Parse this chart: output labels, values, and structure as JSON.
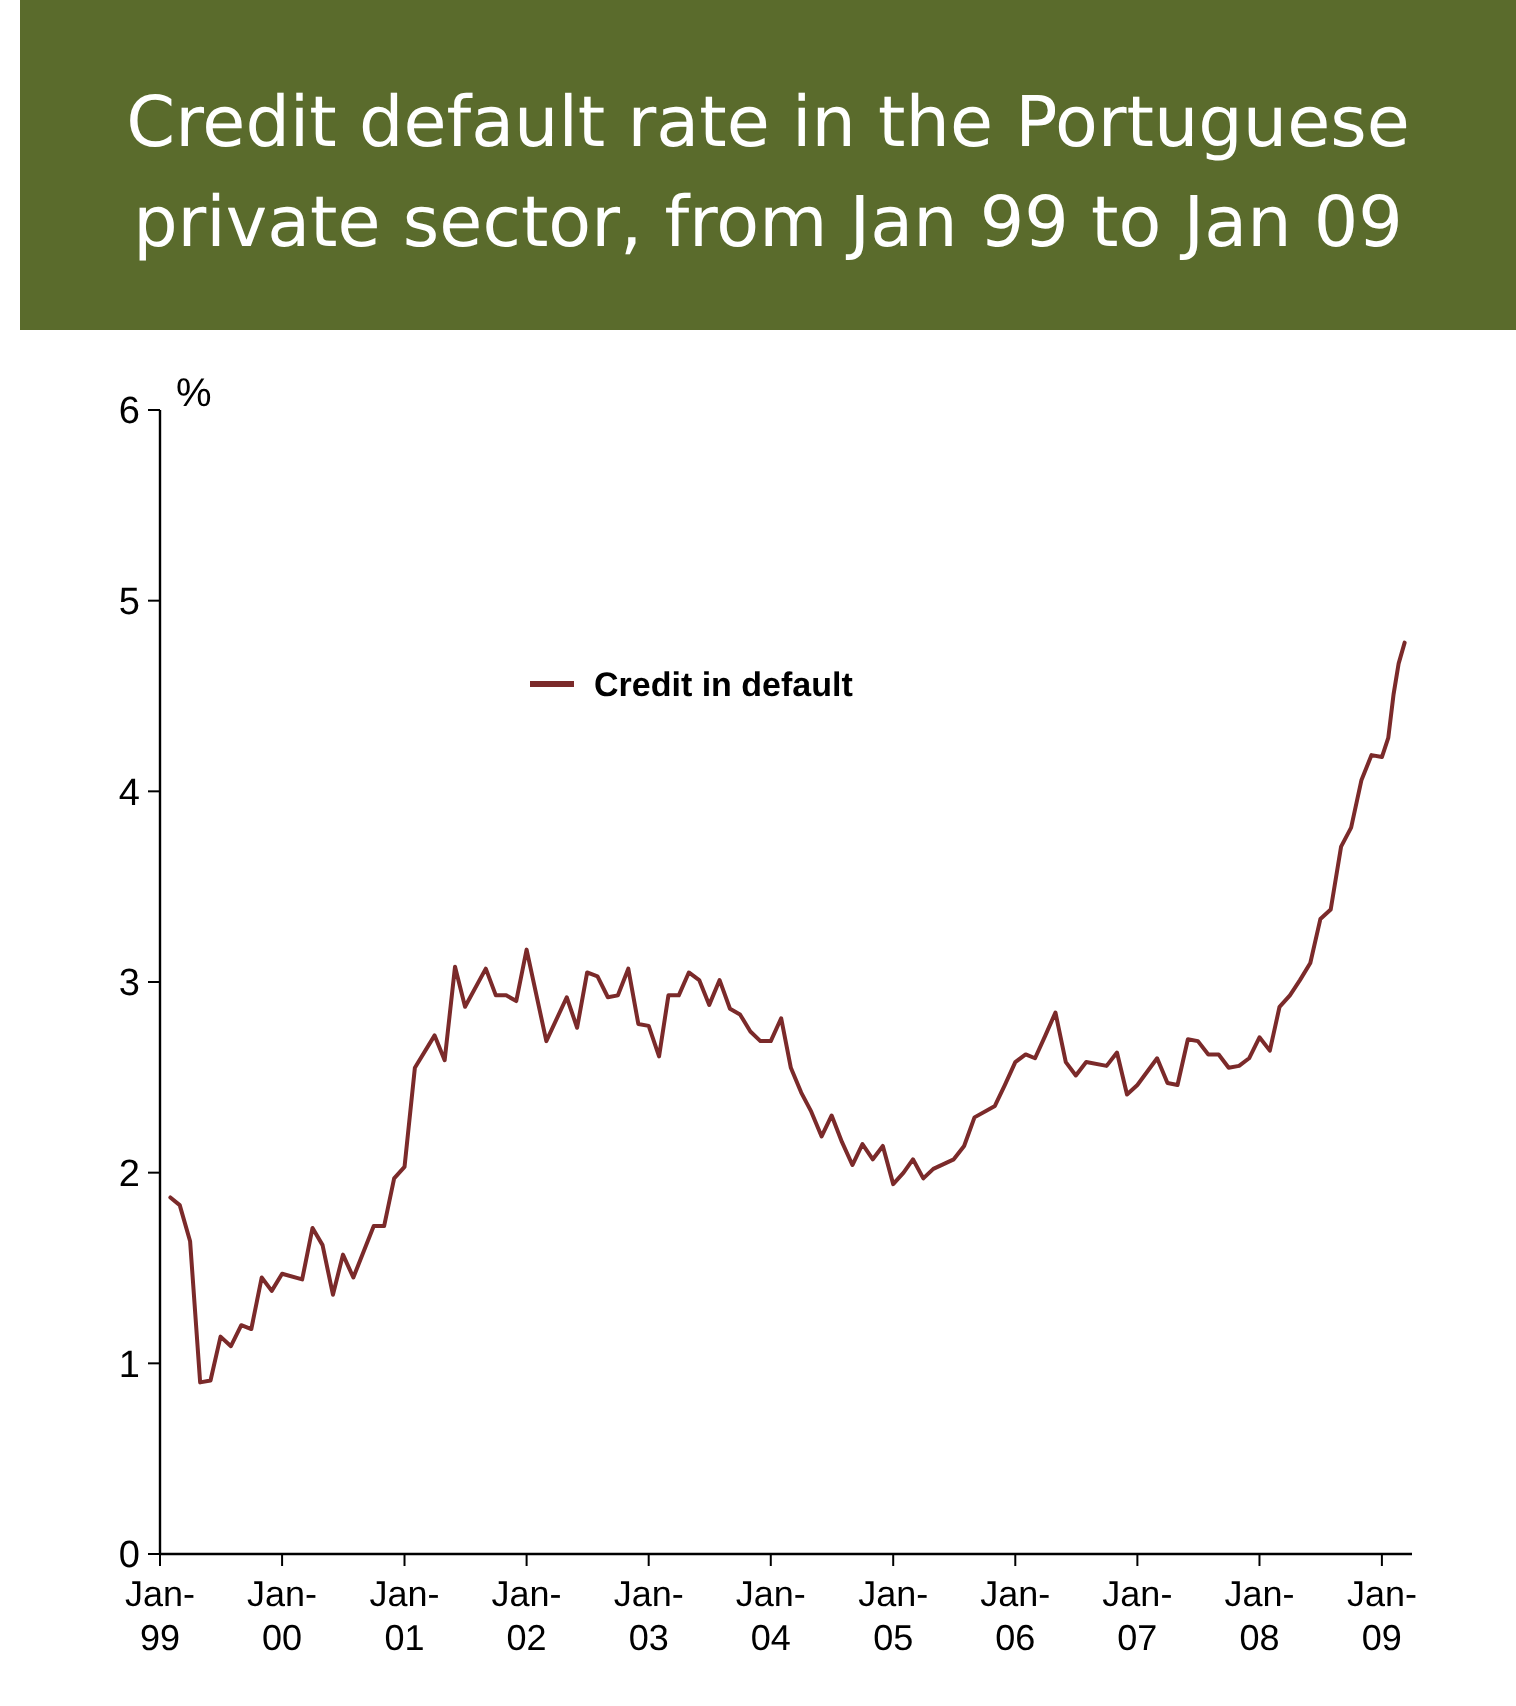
{
  "chart_data": {
    "type": "line",
    "title": "Credit default rate in the Portuguese private sector, from Jan 99 to Jan 09",
    "ylabel": "%",
    "xlim": [
      "1999-01",
      "2009-04"
    ],
    "xticks": [
      {
        "value": "1999-01",
        "label": "Jan-99"
      },
      {
        "value": "2000-01",
        "label": "Jan-00"
      },
      {
        "value": "2001-01",
        "label": "Jan-01"
      },
      {
        "value": "2002-01",
        "label": "Jan-02"
      },
      {
        "value": "2003-01",
        "label": "Jan-03"
      },
      {
        "value": "2004-01",
        "label": "Jan-04"
      },
      {
        "value": "2005-01",
        "label": "Jan-05"
      },
      {
        "value": "2006-01",
        "label": "Jan-06"
      },
      {
        "value": "2007-01",
        "label": "Jan-07"
      },
      {
        "value": "2008-01",
        "label": "Jan-08"
      },
      {
        "value": "2009-01",
        "label": "Jan-09"
      }
    ],
    "ylim": [
      0,
      6
    ],
    "yticks": [
      0,
      1,
      2,
      3,
      4,
      5,
      6
    ],
    "grid": false,
    "legend": "top",
    "series": [
      {
        "name": "Credit in default",
        "color": "#7b2a2a",
        "x": [
          "1999-02",
          "1999-03",
          "1999-04",
          "1999-05",
          "1999-06",
          "1999-07",
          "1999-08",
          "1999-09",
          "1999-10",
          "1999-11",
          "1999-12",
          "2000-01",
          "2000-03",
          "2000-04",
          "2000-05",
          "2000-06",
          "2000-07",
          "2000-08",
          "2000-10",
          "2000-11",
          "2000-12",
          "2001-01",
          "2001-02",
          "2001-04",
          "2001-05",
          "2001-06",
          "2001-07",
          "2001-09",
          "2001-10",
          "2001-11",
          "2001-12",
          "2002-01",
          "2002-03",
          "2002-05",
          "2002-06",
          "2002-07",
          "2002-08",
          "2002-09",
          "2002-10",
          "2002-11",
          "2002-12",
          "2003-01",
          "2003-02",
          "2003-03",
          "2003-04",
          "2003-05",
          "2003-06",
          "2003-07",
          "2003-08",
          "2003-09",
          "2003-10",
          "2003-11",
          "2003-12",
          "2004-01",
          "2004-02",
          "2004-03",
          "2004-04",
          "2004-05",
          "2004-06",
          "2004-07",
          "2004-08",
          "2004-09",
          "2004-10",
          "2004-11",
          "2004-12",
          "2005-01",
          "2005-02",
          "2005-03",
          "2005-04",
          "2005-05",
          "2005-07",
          "2005-08",
          "2005-09",
          "2005-11",
          "2005-12",
          "2006-01",
          "2006-02",
          "2006-03",
          "2006-04",
          "2006-05",
          "2006-06",
          "2006-07",
          "2006-08",
          "2006-10",
          "2006-11",
          "2006-12",
          "2007-01",
          "2007-03",
          "2007-04",
          "2007-05",
          "2007-06",
          "2007-07",
          "2007-08",
          "2007-09",
          "2007-10",
          "2007-11",
          "2007-12",
          "2008-01",
          "2008-02",
          "2008-03",
          "2008-04",
          "2008-05",
          "2008-06",
          "2008-07",
          "2008-08",
          "2008-09",
          "2008-10",
          "2008-11",
          "2008-12",
          "2009-01",
          "2009-01-20",
          "2009-02-05",
          "2009-02-20",
          "2009-03-10"
        ],
        "values": [
          1.87,
          1.83,
          1.64,
          0.9,
          0.91,
          1.14,
          1.09,
          1.2,
          1.18,
          1.45,
          1.38,
          1.47,
          1.44,
          1.71,
          1.62,
          1.36,
          1.57,
          1.45,
          1.72,
          1.72,
          1.97,
          2.03,
          2.55,
          2.72,
          2.59,
          3.08,
          2.87,
          3.07,
          2.93,
          2.93,
          2.9,
          3.17,
          2.69,
          2.92,
          2.76,
          3.05,
          3.03,
          2.92,
          2.93,
          3.07,
          2.78,
          2.77,
          2.61,
          2.93,
          2.93,
          3.05,
          3.01,
          2.88,
          3.01,
          2.86,
          2.83,
          2.74,
          2.69,
          2.69,
          2.81,
          2.55,
          2.42,
          2.32,
          2.19,
          2.3,
          2.16,
          2.04,
          2.15,
          2.07,
          2.14,
          1.94,
          2.0,
          2.07,
          1.97,
          2.02,
          2.07,
          2.14,
          2.29,
          2.35,
          2.46,
          2.58,
          2.62,
          2.6,
          2.72,
          2.84,
          2.58,
          2.51,
          2.58,
          2.56,
          2.63,
          2.41,
          2.46,
          2.6,
          2.47,
          2.46,
          2.7,
          2.69,
          2.62,
          2.62,
          2.55,
          2.56,
          2.6,
          2.71,
          2.64,
          2.87,
          2.93,
          3.01,
          3.1,
          3.33,
          3.38,
          3.71,
          3.81,
          4.06,
          4.19,
          4.18,
          4.28,
          4.51,
          4.67,
          4.78
        ]
      }
    ]
  }
}
